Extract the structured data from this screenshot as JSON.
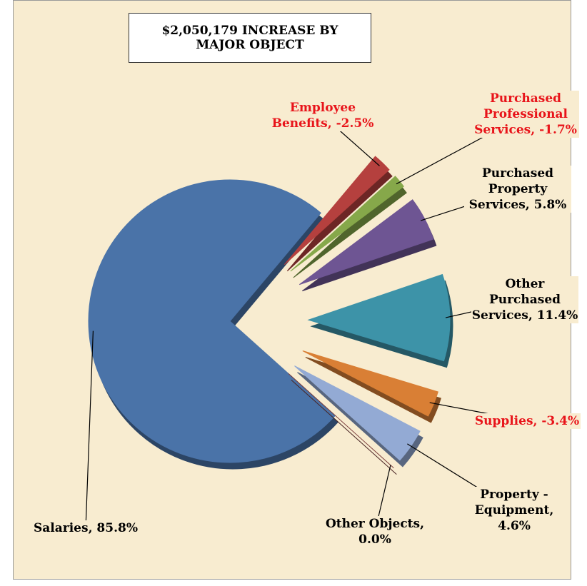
{
  "chart_data": {
    "type": "pie",
    "title": "$2,050,179 INCREASE BY MAJOR OBJECT",
    "categories": [
      "Salaries,",
      "Employee Benefits,",
      "Purchased Professional Services,",
      "Purchased Property Services,",
      "Other Purchased Services,",
      "Supplies,",
      "Property - Equipment,",
      "Other Objects,"
    ],
    "values": [
      85.8,
      -2.5,
      -1.7,
      5.8,
      11.4,
      -3.4,
      4.6,
      0.0
    ],
    "value_labels": [
      "85.8%",
      "-2.5%",
      "-1.7%",
      "5.8%",
      "11.4%",
      "-3.4%",
      "4.6%",
      "0.0%"
    ],
    "colors": [
      "#4a73a8",
      "#b5403e",
      "#86a84a",
      "#6e5593",
      "#3d93a8",
      "#d97f35",
      "#93aad4",
      "#7a3b3a"
    ]
  }
}
